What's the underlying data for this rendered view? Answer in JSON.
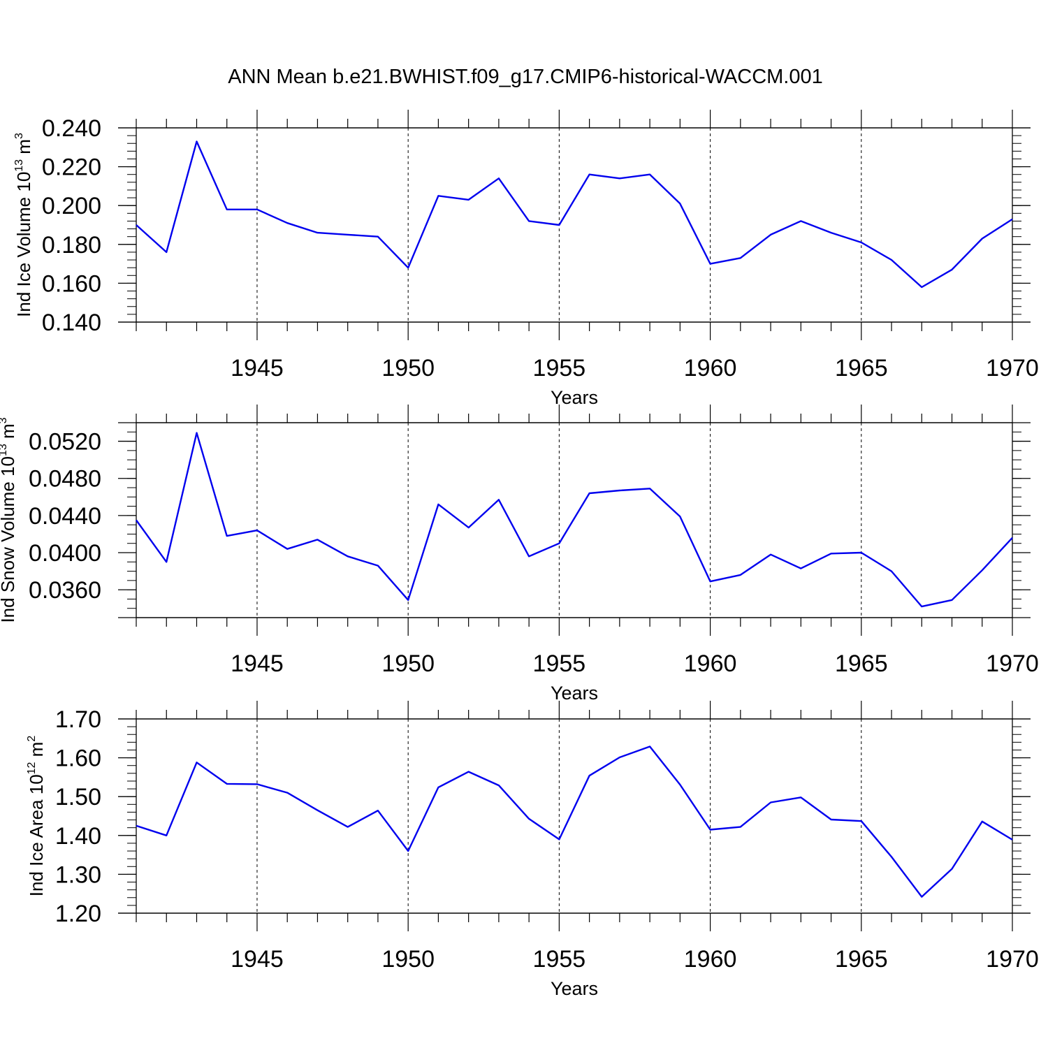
{
  "figure": {
    "title": "ANN Mean b.e21.BWHIST.f09_g17.CMIP6-historical-WACCM.001"
  },
  "chart_data": [
    {
      "type": "line",
      "xlabel": "Years",
      "ylabel": {
        "text": "Ind Ice Volume 10",
        "exp": "13",
        "unit": " m",
        "unit_exp": "3"
      },
      "xlim": [
        1941,
        1970
      ],
      "ylim": [
        0.14,
        0.24
      ],
      "x_major_ticks": [
        1945,
        1950,
        1955,
        1960,
        1965,
        1970
      ],
      "x_tick_labels": [
        "1945",
        "1950",
        "1955",
        "1960",
        "1965",
        "1970"
      ],
      "y_major_ticks": [
        0.14,
        0.16,
        0.18,
        0.2,
        0.22,
        0.24
      ],
      "y_tick_labels": [
        "0.140",
        "0.160",
        "0.180",
        "0.200",
        "0.220",
        "0.240"
      ],
      "y_minor_step": 0.004,
      "grid": "vertical dashed at major x ticks",
      "color": "#0000ee",
      "x": [
        1941,
        1942,
        1943,
        1944,
        1945,
        1946,
        1947,
        1948,
        1949,
        1950,
        1951,
        1952,
        1953,
        1954,
        1955,
        1956,
        1957,
        1958,
        1959,
        1960,
        1961,
        1962,
        1963,
        1964,
        1965,
        1966,
        1967,
        1968,
        1969,
        1970
      ],
      "values": [
        0.19,
        0.176,
        0.233,
        0.198,
        0.198,
        0.191,
        0.186,
        0.185,
        0.184,
        0.168,
        0.205,
        0.203,
        0.214,
        0.192,
        0.19,
        0.216,
        0.214,
        0.216,
        0.201,
        0.17,
        0.173,
        0.185,
        0.192,
        0.186,
        0.181,
        0.172,
        0.158,
        0.167,
        0.183,
        0.193
      ]
    },
    {
      "type": "line",
      "xlabel": "Years",
      "ylabel": {
        "text": "Ind Snow Volume 10",
        "exp": "13",
        "unit": " m",
        "unit_exp": "3"
      },
      "xlim": [
        1941,
        1970
      ],
      "ylim": [
        0.033,
        0.054
      ],
      "x_major_ticks": [
        1945,
        1950,
        1955,
        1960,
        1965,
        1970
      ],
      "x_tick_labels": [
        "1945",
        "1950",
        "1955",
        "1960",
        "1965",
        "1970"
      ],
      "y_major_ticks": [
        0.036,
        0.04,
        0.044,
        0.048,
        0.052
      ],
      "y_tick_labels": [
        "0.0360",
        "0.0400",
        "0.0440",
        "0.0480",
        "0.0520"
      ],
      "y_minor_step": 0.001,
      "grid": "vertical dashed at major x ticks",
      "color": "#0000ee",
      "x": [
        1941,
        1942,
        1943,
        1944,
        1945,
        1946,
        1947,
        1948,
        1949,
        1950,
        1951,
        1952,
        1953,
        1954,
        1955,
        1956,
        1957,
        1958,
        1959,
        1960,
        1961,
        1962,
        1963,
        1964,
        1965,
        1966,
        1967,
        1968,
        1969,
        1970
      ],
      "values": [
        0.0435,
        0.039,
        0.0529,
        0.0418,
        0.0424,
        0.0404,
        0.0414,
        0.0396,
        0.0386,
        0.0349,
        0.0452,
        0.0427,
        0.0457,
        0.0396,
        0.041,
        0.0464,
        0.0467,
        0.0469,
        0.0439,
        0.0369,
        0.0376,
        0.0398,
        0.0383,
        0.0399,
        0.04,
        0.038,
        0.0342,
        0.0349,
        0.0381,
        0.0416
      ]
    },
    {
      "type": "line",
      "xlabel": "Years",
      "ylabel": {
        "text": "Ind Ice Area 10",
        "exp": "12",
        "unit": " m",
        "unit_exp": "2"
      },
      "xlim": [
        1941,
        1970
      ],
      "ylim": [
        1.2,
        1.7
      ],
      "x_major_ticks": [
        1945,
        1950,
        1955,
        1960,
        1965,
        1970
      ],
      "x_tick_labels": [
        "1945",
        "1950",
        "1955",
        "1960",
        "1965",
        "1970"
      ],
      "y_major_ticks": [
        1.2,
        1.3,
        1.4,
        1.5,
        1.6,
        1.7
      ],
      "y_tick_labels": [
        "1.20",
        "1.30",
        "1.40",
        "1.50",
        "1.60",
        "1.70"
      ],
      "y_minor_step": 0.02,
      "grid": "vertical dashed at major x ticks",
      "color": "#0000ee",
      "x": [
        1941,
        1942,
        1943,
        1944,
        1945,
        1946,
        1947,
        1948,
        1949,
        1950,
        1951,
        1952,
        1953,
        1954,
        1955,
        1956,
        1957,
        1958,
        1959,
        1960,
        1961,
        1962,
        1963,
        1964,
        1965,
        1966,
        1967,
        1968,
        1969,
        1970
      ],
      "values": [
        1.425,
        1.4,
        1.588,
        1.533,
        1.532,
        1.51,
        1.465,
        1.422,
        1.464,
        1.36,
        1.524,
        1.564,
        1.529,
        1.443,
        1.39,
        1.554,
        1.601,
        1.629,
        1.531,
        1.415,
        1.422,
        1.485,
        1.498,
        1.441,
        1.437,
        1.345,
        1.242,
        1.314,
        1.436,
        1.389
      ]
    }
  ]
}
